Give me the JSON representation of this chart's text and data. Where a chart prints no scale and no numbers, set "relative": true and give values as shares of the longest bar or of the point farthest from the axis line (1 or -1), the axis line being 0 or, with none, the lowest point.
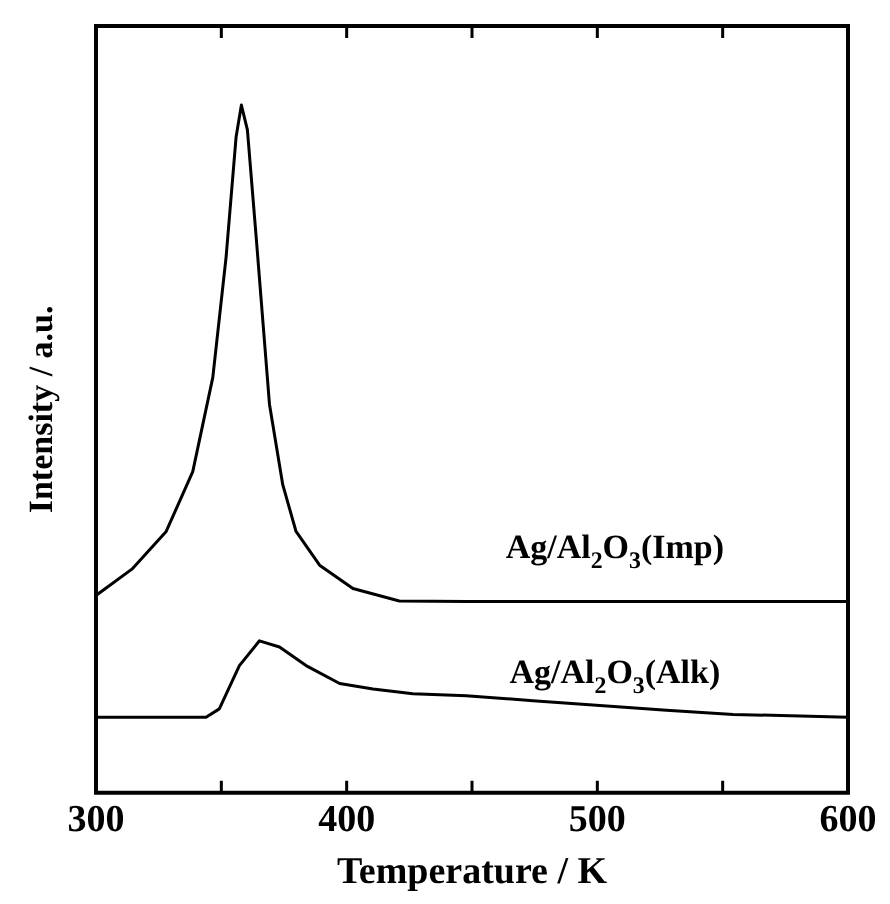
{
  "chart_data": {
    "type": "line",
    "relative": true,
    "xlabel": "Temperature / K",
    "ylabel": "Intensity / a.u.",
    "xlim": [
      300,
      600
    ],
    "xticks": [
      300,
      {
        "value": 350,
        "label": null
      },
      400,
      {
        "value": 450,
        "label": null
      },
      500,
      {
        "value": 550,
        "label": null
      },
      600
    ],
    "grid": false,
    "legend": false,
    "marker": "none",
    "line_style": "solid",
    "series": [
      {
        "name": "Ag/Al$_{2}$O$_{3}$(Imp)",
        "color": "#000000",
        "x": [
          300,
          314.6,
          328,
          338.6,
          346.6,
          351.9,
          355.9,
          358,
          360.4,
          363.9,
          369.2,
          374.5,
          379.8,
          389.2,
          402.5,
          421,
          448,
          600
        ],
        "values": [
          0.287,
          0.326,
          0.38,
          0.467,
          0.604,
          0.779,
          0.954,
          1.0,
          0.964,
          0.808,
          0.565,
          0.448,
          0.38,
          0.331,
          0.297,
          0.279,
          0.278,
          0.278
        ]
      },
      {
        "name": "Ag/Al$_{2}$O$_{3}$(Alk)",
        "color": "#000000",
        "x": [
          300,
          343.9,
          349.2,
          357.2,
          365.2,
          373.2,
          383.8,
          397.2,
          410.5,
          426.4,
          447.7,
          474.3,
          501,
          527.6,
          554.2,
          600
        ],
        "values": [
          0.11,
          0.11,
          0.122,
          0.185,
          0.221,
          0.212,
          0.185,
          0.159,
          0.151,
          0.144,
          0.141,
          0.134,
          0.127,
          0.12,
          0.114,
          0.11
        ]
      }
    ]
  }
}
